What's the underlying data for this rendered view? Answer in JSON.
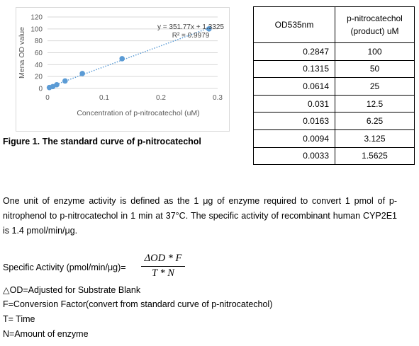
{
  "chart_data": {
    "type": "scatter",
    "title": "",
    "xlabel": "Concentration of p-nitrocatechol (uM)",
    "ylabel": "Mena OD value",
    "xlim": [
      0,
      0.3
    ],
    "ylim": [
      0,
      120
    ],
    "x_ticks": [
      "0",
      "0.1",
      "0.2",
      "0.3"
    ],
    "y_ticks": [
      "0",
      "20",
      "40",
      "60",
      "80",
      "100",
      "120"
    ],
    "grid": "horizontal",
    "legend": "none",
    "marker_color": "#5b9bd5",
    "series": [
      {
        "x": [
          0.0033,
          0.0094,
          0.0163,
          0.031,
          0.0614,
          0.1315,
          0.2847
        ],
        "values": [
          1.5625,
          3.125,
          6.25,
          12.5,
          25,
          50,
          100
        ]
      }
    ],
    "trendline": {
      "type": "linear",
      "style": "dotted",
      "slope": 351.77,
      "intercept": 1.3325,
      "equation": "y = 351.77x + 1.3325",
      "r2_label": "R² = 0.9979"
    }
  },
  "caption": "Figure 1. The standard curve of p-nitrocatechol",
  "table": {
    "header_od": "OD535nm",
    "header_pn": "p-nitrocatechol\n(product) uM",
    "rows": [
      {
        "od": "0.2847",
        "pn": "100"
      },
      {
        "od": "0.1315",
        "pn": "50"
      },
      {
        "od": "0.0614",
        "pn": "25"
      },
      {
        "od": "0.031",
        "pn": "12.5"
      },
      {
        "od": "0.0163",
        "pn": "6.25"
      },
      {
        "od": "0.0094",
        "pn": "3.125"
      },
      {
        "od": "0.0033",
        "pn": "1.5625"
      }
    ]
  },
  "paragraph": "One unit of enzyme activity is defined as the 1 μg of enzyme required to convert 1 pmol of p-nitrophenol to p-nitrocatechol in 1 min at 37°C. The specific activity of recombinant human CYP2E1 is 1.4 pmol/min/μg.",
  "specific_activity_label": "Specific Activity (pmol/min/μg)=",
  "formula": {
    "numerator": "ΔOD * F",
    "denominator": "T * N"
  },
  "definitions": {
    "od": "△OD=Adjusted for Substrate Blank",
    "f": "F=Conversion Factor(convert from standard curve of p-nitrocatechol)",
    "t": "T= Time",
    "n": "N=Amount of enzyme"
  }
}
